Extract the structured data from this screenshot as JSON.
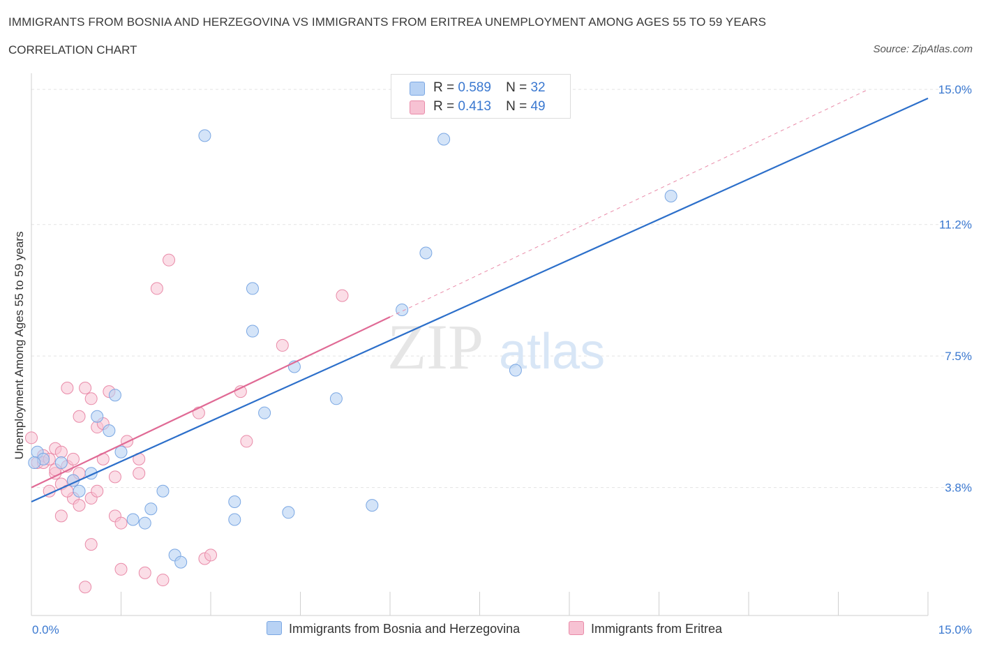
{
  "title": "IMMIGRANTS FROM BOSNIA AND HERZEGOVINA VS IMMIGRANTS FROM ERITREA UNEMPLOYMENT AMONG AGES 55 TO 59 YEARS",
  "subtitle": "CORRELATION CHART",
  "source": "Source: ZipAtlas.com",
  "watermark": {
    "zip": "ZIP",
    "atlas": "atlas"
  },
  "colors": {
    "bosnia_fill": "#b8d2f4",
    "bosnia_stroke": "#7aa7e3",
    "bosnia_line": "#2c6fca",
    "eritrea_fill": "#f7c2d3",
    "eritrea_stroke": "#e98aa8",
    "eritrea_line": "#e06a95",
    "grid": "#e3e3e3",
    "axis_label": "#3a78d0"
  },
  "legend_top": [
    {
      "r_label": "R =",
      "r_value": "0.589",
      "n_label": "N =",
      "n_value": "32"
    },
    {
      "r_label": "R =",
      "r_value": "0.413",
      "n_label": "N =",
      "n_value": "49"
    }
  ],
  "chart_data": {
    "type": "scatter",
    "xlabel": "",
    "ylabel": "Unemployment Among Ages 55 to 59 years",
    "xlim": [
      0,
      15
    ],
    "ylim": [
      0.2,
      15.2
    ],
    "x_tick_labels": [
      {
        "value": 0,
        "label": "0.0%"
      },
      {
        "value": 15,
        "label": "15.0%"
      }
    ],
    "y_tick_labels": [
      {
        "value": 3.8,
        "label": "3.8%"
      },
      {
        "value": 7.5,
        "label": "7.5%"
      },
      {
        "value": 11.2,
        "label": "11.2%"
      },
      {
        "value": 15.0,
        "label": "15.0%"
      }
    ],
    "grid": "horizontal dashed",
    "legend_position": "bottom",
    "series": [
      {
        "name": "Immigrants from Bosnia and Herzegovina",
        "R": 0.589,
        "N": 32,
        "points": [
          [
            0.1,
            4.8
          ],
          [
            0.2,
            4.6
          ],
          [
            0.5,
            4.5
          ],
          [
            0.7,
            4.0
          ],
          [
            1.0,
            4.2
          ],
          [
            0.8,
            3.7
          ],
          [
            1.1,
            5.8
          ],
          [
            1.3,
            5.4
          ],
          [
            1.4,
            6.4
          ],
          [
            1.5,
            4.8
          ],
          [
            1.7,
            2.9
          ],
          [
            1.9,
            2.8
          ],
          [
            2.0,
            3.2
          ],
          [
            2.2,
            3.7
          ],
          [
            2.4,
            1.9
          ],
          [
            2.5,
            1.7
          ],
          [
            2.9,
            13.7
          ],
          [
            3.4,
            2.9
          ],
          [
            3.4,
            3.4
          ],
          [
            3.7,
            9.4
          ],
          [
            3.7,
            8.2
          ],
          [
            3.9,
            5.9
          ],
          [
            4.3,
            3.1
          ],
          [
            4.4,
            7.2
          ],
          [
            5.1,
            6.3
          ],
          [
            5.7,
            3.3
          ],
          [
            6.2,
            8.8
          ],
          [
            6.6,
            10.4
          ],
          [
            6.9,
            13.6
          ],
          [
            8.1,
            7.1
          ],
          [
            10.7,
            12.0
          ],
          [
            0.05,
            4.5
          ]
        ],
        "trend": {
          "x": [
            0.0,
            15.0
          ],
          "y": [
            3.4,
            14.75
          ]
        }
      },
      {
        "name": "Immigrants from Eritrea",
        "R": 0.413,
        "N": 49,
        "points": [
          [
            0.0,
            5.2
          ],
          [
            0.1,
            4.5
          ],
          [
            0.2,
            4.7
          ],
          [
            0.3,
            3.7
          ],
          [
            0.4,
            4.9
          ],
          [
            0.4,
            4.2
          ],
          [
            0.5,
            4.8
          ],
          [
            0.5,
            3.9
          ],
          [
            0.5,
            3.0
          ],
          [
            0.6,
            4.4
          ],
          [
            0.6,
            6.6
          ],
          [
            0.7,
            4.0
          ],
          [
            0.7,
            3.5
          ],
          [
            0.8,
            3.3
          ],
          [
            0.8,
            5.8
          ],
          [
            0.9,
            6.6
          ],
          [
            0.8,
            4.2
          ],
          [
            0.9,
            1.0
          ],
          [
            1.0,
            6.3
          ],
          [
            1.0,
            3.5
          ],
          [
            1.0,
            2.2
          ],
          [
            1.1,
            5.5
          ],
          [
            1.1,
            3.7
          ],
          [
            1.2,
            5.6
          ],
          [
            1.2,
            4.6
          ],
          [
            1.3,
            6.5
          ],
          [
            1.4,
            3.0
          ],
          [
            1.4,
            4.1
          ],
          [
            1.5,
            2.8
          ],
          [
            1.5,
            1.5
          ],
          [
            1.6,
            5.1
          ],
          [
            1.8,
            4.6
          ],
          [
            1.8,
            4.2
          ],
          [
            1.9,
            1.4
          ],
          [
            2.1,
            9.4
          ],
          [
            2.2,
            1.2
          ],
          [
            2.3,
            10.2
          ],
          [
            2.8,
            5.9
          ],
          [
            2.9,
            1.8
          ],
          [
            3.0,
            1.9
          ],
          [
            3.5,
            6.5
          ],
          [
            3.6,
            5.1
          ],
          [
            4.2,
            7.8
          ],
          [
            5.2,
            9.2
          ],
          [
            0.2,
            4.5
          ],
          [
            0.3,
            4.6
          ],
          [
            0.4,
            4.3
          ],
          [
            0.6,
            3.7
          ],
          [
            0.7,
            4.6
          ]
        ],
        "trend": {
          "x": [
            0.0,
            6.0
          ],
          "y": [
            3.8,
            8.6
          ]
        },
        "trend_extension": {
          "x": [
            6.0,
            14.0
          ],
          "y": [
            8.6,
            15.0
          ]
        }
      }
    ]
  },
  "legend_bottom": [
    {
      "label": "Immigrants from Bosnia and Herzegovina"
    },
    {
      "label": "Immigrants from Eritrea"
    }
  ]
}
